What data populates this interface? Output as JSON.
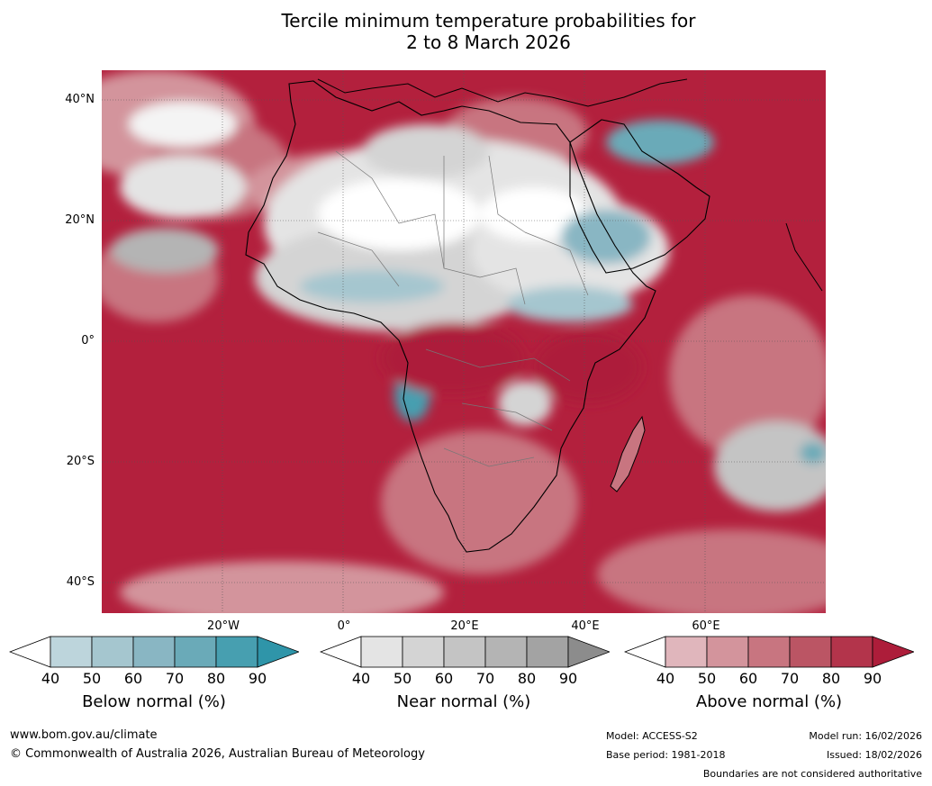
{
  "title_line1": "Tercile minimum temperature probabilities for",
  "title_line2": "2 to 8 March 2026",
  "map": {
    "lat_labels": [
      "40°N",
      "20°N",
      "0°",
      "20°S",
      "40°S"
    ],
    "lon_labels": [
      "20°W",
      "0°",
      "20°E",
      "40°E",
      "60°E"
    ]
  },
  "colorbars": [
    {
      "label": "Below normal (%)",
      "ticks": [
        "40",
        "50",
        "60",
        "70",
        "80",
        "90"
      ],
      "colors": [
        "#ffffff",
        "#bdd5dc",
        "#a5c6cf",
        "#89b6c3",
        "#6aaab8",
        "#479fb0",
        "#2f95a9"
      ]
    },
    {
      "label": "Near normal (%)",
      "ticks": [
        "40",
        "50",
        "60",
        "70",
        "80",
        "90"
      ],
      "colors": [
        "#ffffff",
        "#e4e4e4",
        "#d4d4d4",
        "#c4c4c4",
        "#b4b4b4",
        "#a3a3a3",
        "#8c8c8c"
      ]
    },
    {
      "label": "Above normal (%)",
      "ticks": [
        "40",
        "50",
        "60",
        "70",
        "80",
        "90"
      ],
      "colors": [
        "#ffffff",
        "#e0b6bc",
        "#d3949c",
        "#c87580",
        "#bb5564",
        "#b3344b",
        "#ad1d3a"
      ]
    }
  ],
  "footer": {
    "website": "www.bom.gov.au/climate",
    "copyright": "© Commonwealth of Australia 2026, Australian Bureau of Meteorology",
    "model": "Model: ACCESS-S2",
    "base_period": "Base period: 1981-2018",
    "model_run": "Model run: 16/02/2026",
    "issued": "Issued: 18/02/2026",
    "disclaimer": "Boundaries are not considered authoritative"
  }
}
